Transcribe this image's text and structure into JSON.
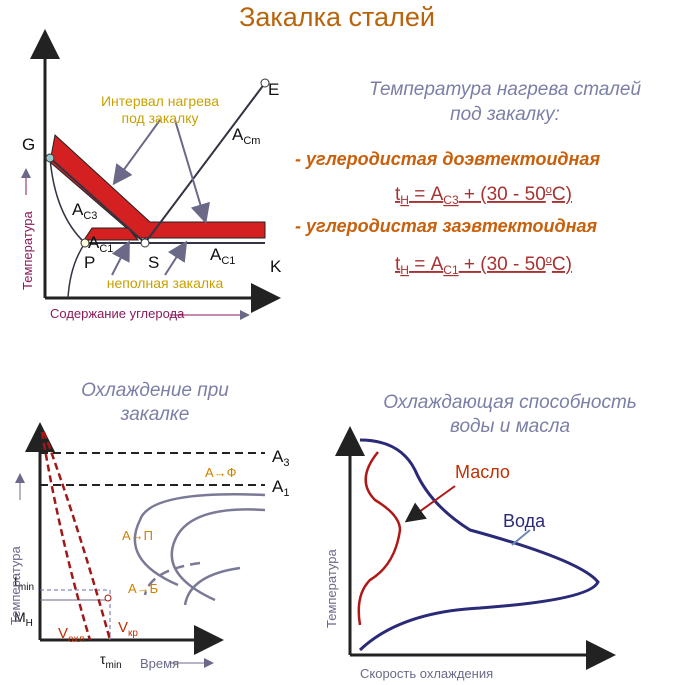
{
  "title": "Закалка сталей",
  "phase_diagram": {
    "y_axis": "Температура",
    "x_axis": "Содержание углерода",
    "points": {
      "G": "G",
      "E": "E",
      "P": "P",
      "S": "S",
      "K": "K"
    },
    "ac3": [
      "A",
      "C3"
    ],
    "acm": [
      "A",
      "Cm"
    ],
    "ac1_left": [
      "A",
      "C1"
    ],
    "ac1_right": [
      "A",
      "C1"
    ],
    "callout_heating": [
      "Интервал нагрева",
      "под закалку"
    ],
    "callout_partial": "неполная закалка"
  },
  "heating": {
    "title": [
      "Температура нагрева сталей",
      "под закалку:"
    ],
    "item_1": "- углеродистая доэвтектоидная",
    "formula_1": [
      "t",
      "Н",
      " = A",
      "C3",
      " + (30 - 50",
      "о",
      "С)"
    ],
    "item_2": "- углеродистая заэвтектоидная",
    "formula_2": [
      "t",
      "Н",
      " = A",
      "C1",
      " + (30 - 50",
      "о",
      "С)"
    ]
  },
  "cooling": {
    "title": [
      "Охлаждение при",
      "закалке"
    ],
    "y_axis": "Температура",
    "x_axis": "Время",
    "a3": [
      "A",
      "3"
    ],
    "a1": [
      "A",
      "1"
    ],
    "a_f": "А→Ф",
    "a_p": "А→П",
    "a_b": "А→Б",
    "t_min": [
      "t",
      "min"
    ],
    "m_n": [
      "М",
      "Н"
    ],
    "v_ohl": [
      "V",
      "охл"
    ],
    "v_kr": [
      "V",
      "кр"
    ],
    "tau_min": [
      "τ",
      "min"
    ]
  },
  "quench_media": {
    "title": [
      "Охлаждающая способность",
      "воды и масла"
    ],
    "oil": "Масло",
    "water": "Вода",
    "y_axis": "Температура",
    "x_axis": "Скорость охлаждения"
  }
}
